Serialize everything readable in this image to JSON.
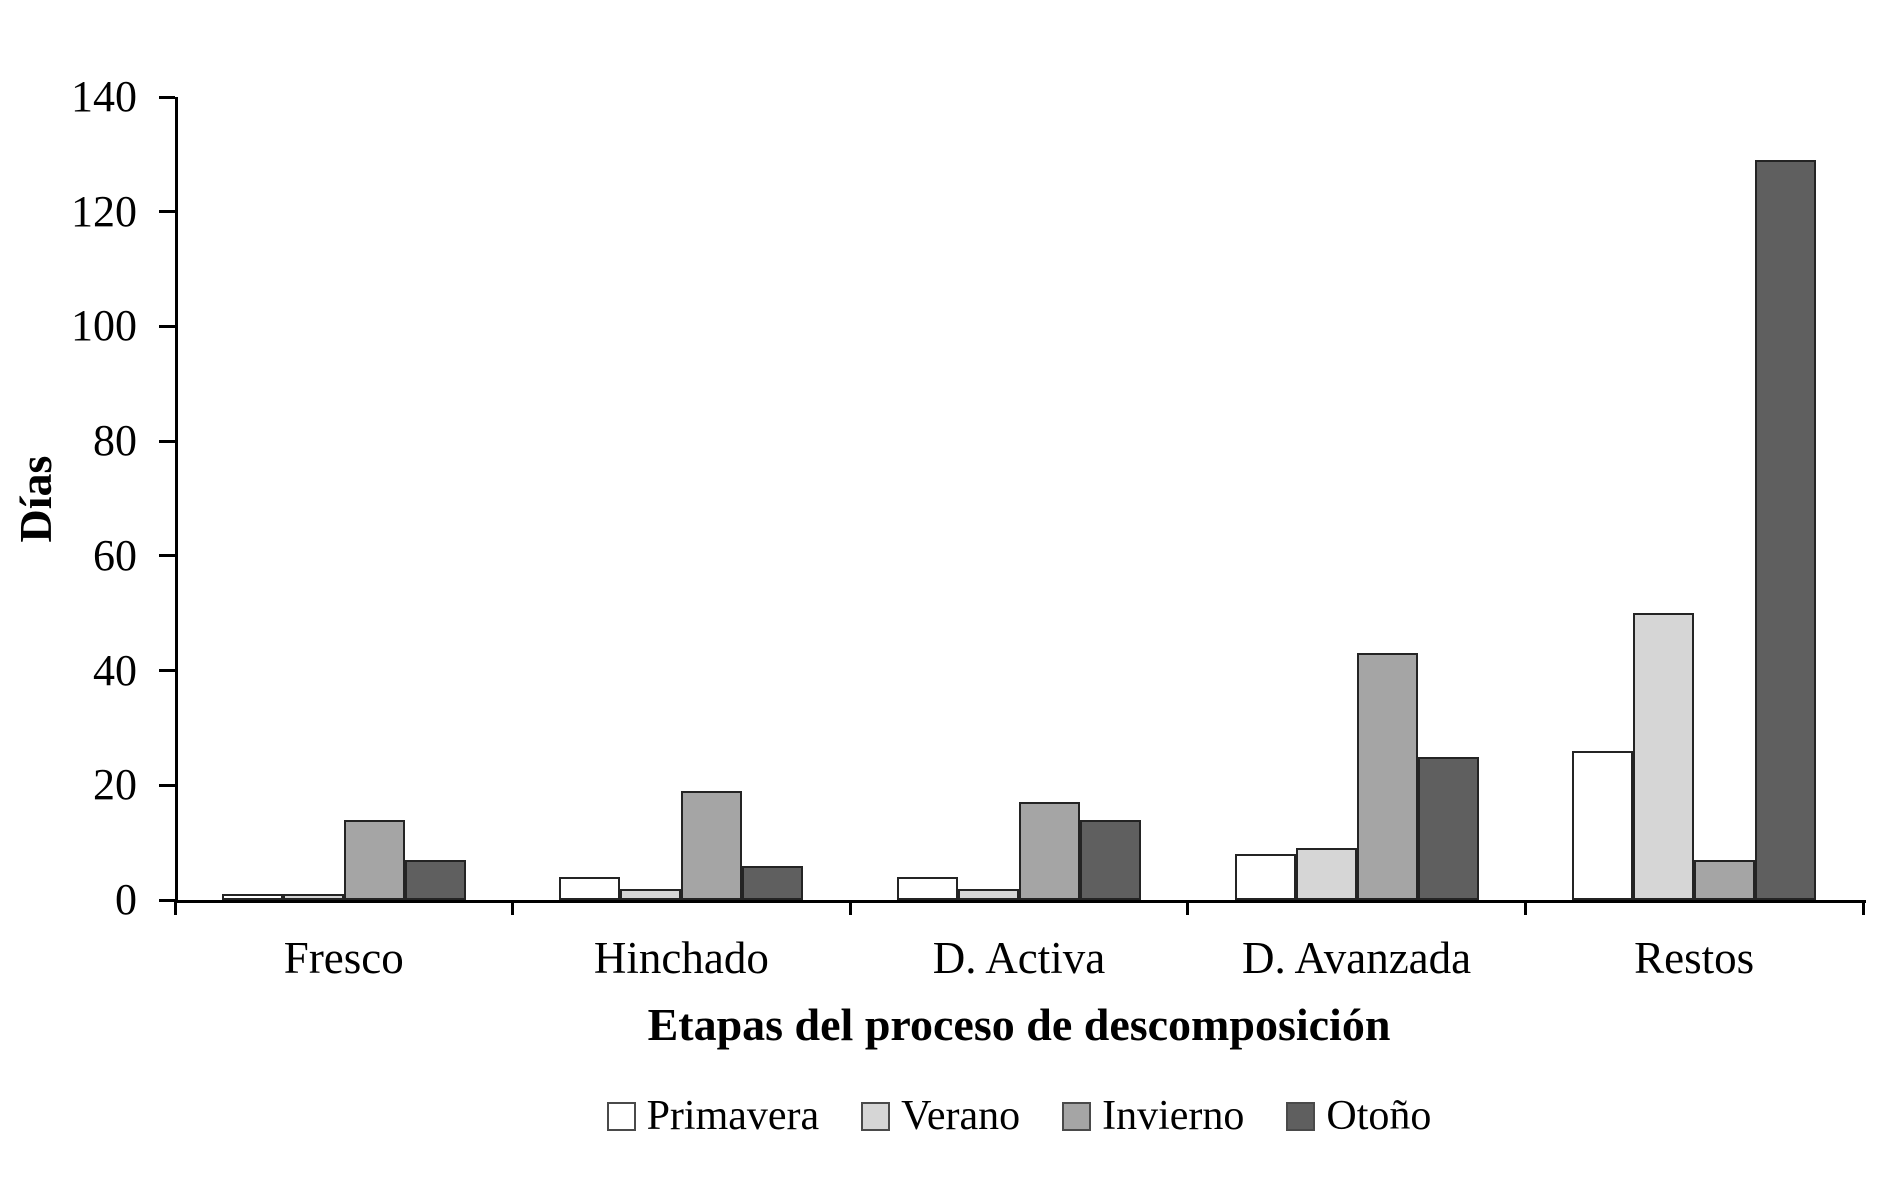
{
  "figure": {
    "background": "#ffffff",
    "axis_color": "#000000"
  },
  "chart_data": {
    "type": "bar",
    "title": "",
    "xlabel": "Etapas del proceso de descomposición",
    "ylabel": "Días",
    "categories": [
      "Fresco",
      "Hinchado",
      "D. Activa",
      "D. Avanzada",
      "Restos"
    ],
    "series": [
      {
        "name": "Primavera",
        "color": "#ffffff",
        "values": [
          1,
          4,
          4,
          8,
          26
        ]
      },
      {
        "name": "Verano",
        "color": "#d6d6d6",
        "values": [
          1,
          2,
          2,
          9,
          50
        ]
      },
      {
        "name": "Invierno",
        "color": "#a5a5a5",
        "values": [
          14,
          19,
          17,
          43,
          7
        ]
      },
      {
        "name": "Otoño",
        "color": "#5f5f5f",
        "values": [
          7,
          6,
          14,
          25,
          129
        ]
      }
    ],
    "ylim": [
      0,
      140
    ],
    "ytick_step": 20,
    "yticks": [
      "0",
      "20",
      "40",
      "60",
      "80",
      "100",
      "120",
      "140"
    ],
    "grid": false,
    "legend_position": "bottom",
    "bar_border_color": "#242424"
  }
}
